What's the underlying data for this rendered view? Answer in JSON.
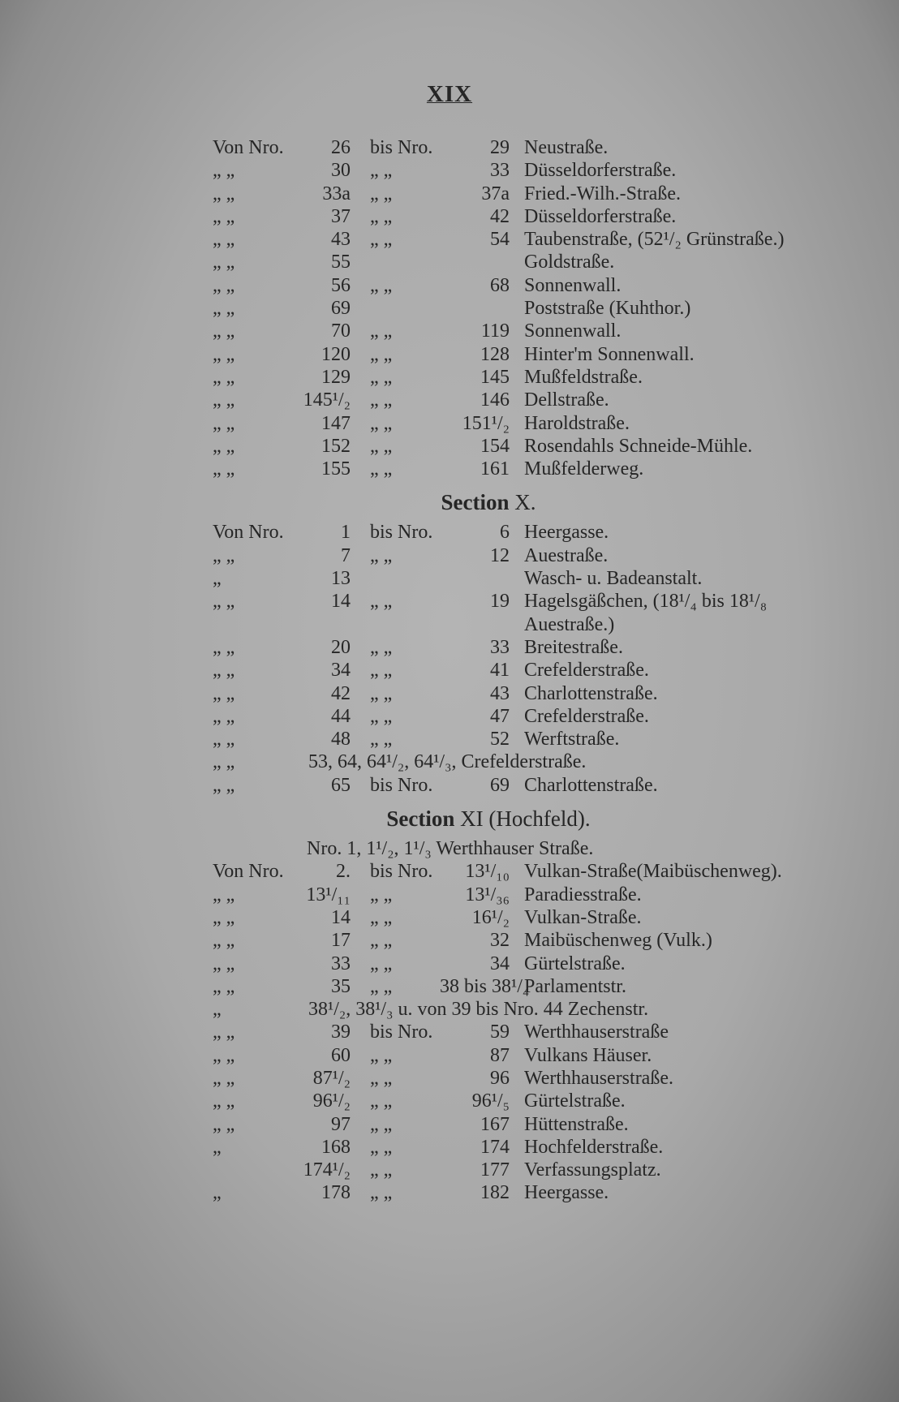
{
  "page_number": "XIX",
  "sections": [
    {
      "title": "",
      "rows": [
        {
          "p": "Von Nro.",
          "a": "26",
          "b": "bis Nro.",
          "c": "29",
          "s": "Neustraße."
        },
        {
          "p": "„ „",
          "a": "30",
          "b": "„ „",
          "c": "33",
          "s": "Düsseldorferstraße."
        },
        {
          "p": "„ „",
          "a": "33a",
          "b": "„ „",
          "c": "37a",
          "s": "Fried.-Wilh.-Straße."
        },
        {
          "p": "„ „",
          "a": "37",
          "b": "„ „",
          "c": "42",
          "s": "Düsseldorferstraße."
        },
        {
          "p": "„ „",
          "a": "43",
          "b": "„ „",
          "c": "54",
          "s": "Taubenstraße, (52¹/₂ Grünstraße.)"
        },
        {
          "p": "„ „",
          "a": "55",
          "b": "",
          "c": "",
          "s": "Goldstraße."
        },
        {
          "p": "„ „",
          "a": "56",
          "b": "„ „",
          "c": "68",
          "s": "Sonnenwall."
        },
        {
          "p": "„ „",
          "a": "69",
          "b": "",
          "c": "",
          "s": "Poststraße (Kuhthor.)"
        },
        {
          "p": "„ „",
          "a": "70",
          "b": "„ „",
          "c": "119",
          "s": "Sonnenwall."
        },
        {
          "p": "„ „",
          "a": "120",
          "b": "„ „",
          "c": "128",
          "s": "Hinter'm Sonnenwall."
        },
        {
          "p": "„ „",
          "a": "129",
          "b": "„ „",
          "c": "145",
          "s": "Mußfeldstraße."
        },
        {
          "p": "„ „",
          "a": "145¹/₂",
          "b": "„ „",
          "c": "146",
          "s": "Dellstraße."
        },
        {
          "p": "„ „",
          "a": "147",
          "b": "„ „",
          "c": "151¹/₂",
          "s": "Haroldstraße."
        },
        {
          "p": "„ „",
          "a": "152",
          "b": "„ „",
          "c": "154",
          "s": "Rosendahls Schneide-Mühle."
        },
        {
          "p": "„ „",
          "a": "155",
          "b": "„ „",
          "c": "161",
          "s": "Mußfelderweg."
        }
      ]
    },
    {
      "title": "Section",
      "title_suffix": "X.",
      "rows": [
        {
          "p": "Von Nro.",
          "a": "1",
          "b": "bis Nro.",
          "c": "6",
          "s": "Heergasse."
        },
        {
          "p": "„ „",
          "a": "7",
          "b": "„ „",
          "c": "12",
          "s": "Auestraße."
        },
        {
          "p": "„",
          "a": "13",
          "b": "",
          "c": "",
          "s": "Wasch- u. Badeanstalt."
        },
        {
          "p": "„ „",
          "a": "14",
          "b": "„ „",
          "c": "19",
          "s": "Hagelsgäßchen, (18¹/₄ bis 18¹/₈ Auestraße.)"
        },
        {
          "p": "„ „",
          "a": "20",
          "b": "„ „",
          "c": "33",
          "s": "Breitestraße."
        },
        {
          "p": "„ „",
          "a": "34",
          "b": "„ „",
          "c": "41",
          "s": "Crefelderstraße."
        },
        {
          "p": "„ „",
          "a": "42",
          "b": "„ „",
          "c": "43",
          "s": "Charlottenstraße."
        },
        {
          "p": "„ „",
          "a": "44",
          "b": "„ „",
          "c": "47",
          "s": "Crefelderstraße."
        },
        {
          "p": "„ „",
          "a": "48",
          "b": "„ „",
          "c": "52",
          "s": "Werftstraße."
        },
        {
          "p": "„ „",
          "span": "53, 64, 64¹/₂, 64¹/₃, Crefelderstraße."
        },
        {
          "p": "„ „",
          "a": "65",
          "b": "bis Nro.",
          "c": "69",
          "s": "Charlottenstraße."
        }
      ]
    },
    {
      "title": "Section",
      "title_suffix": "XI (Hochfeld).",
      "intro": "Nro. 1, 1¹/₂, 1¹/₃ Werthhauser Straße.",
      "rows": [
        {
          "p": "Von Nro.",
          "a": "2.",
          "b": "bis Nro.",
          "c": "13¹/₁₀",
          "s": "Vulkan-Straße(Maibüschenweg)."
        },
        {
          "p": "„ „",
          "a": "13¹/₁₁",
          "b": "„ „",
          "c": "13¹/₃₆",
          "s": "Paradiesstraße."
        },
        {
          "p": "„ „",
          "a": "14",
          "b": "„ „",
          "c": "16¹/₂",
          "s": "Vulkan-Straße."
        },
        {
          "p": "„ „",
          "a": "17",
          "b": "„ „",
          "c": "32",
          "s": "Maibüschenweg (Vulk.)"
        },
        {
          "p": "„ „",
          "a": "33",
          "b": "„ „",
          "c": "34",
          "s": "Gürtelstraße."
        },
        {
          "p": "„ „",
          "a": "35",
          "b": "„ „",
          "c": "38 bis 38¹/₄",
          "s": "Parlamentstr."
        },
        {
          "p": "„",
          "span": "38¹/₂, 38¹/₃ u. von 39 bis Nro. 44 Zechenstr."
        },
        {
          "p": "„ „",
          "a": "39",
          "b": "bis Nro.",
          "c": "59",
          "s": "Werthhauserstraße"
        },
        {
          "p": "„ „",
          "a": "60",
          "b": "„ „",
          "c": "87",
          "s": "Vulkans Häuser."
        },
        {
          "p": "„ „",
          "a": "87¹/₂",
          "b": "„ „",
          "c": "96",
          "s": "Werthhauserstraße."
        },
        {
          "p": "„ „",
          "a": "96¹/₂",
          "b": "„ „",
          "c": "96¹/₅",
          "s": "Gürtelstraße."
        },
        {
          "p": "„ „",
          "a": "97",
          "b": "„ „",
          "c": "167",
          "s": "Hüttenstraße."
        },
        {
          "p": "„",
          "a": "168",
          "b": "„ „",
          "c": "174",
          "s": "Hochfelderstraße."
        },
        {
          "p": "",
          "a": "174¹/₂",
          "b": "„ „",
          "c": "177",
          "s": "Verfassungsplatz."
        },
        {
          "p": "„",
          "a": "178",
          "b": "„ „",
          "c": "182",
          "s": "Heergasse."
        }
      ]
    }
  ]
}
